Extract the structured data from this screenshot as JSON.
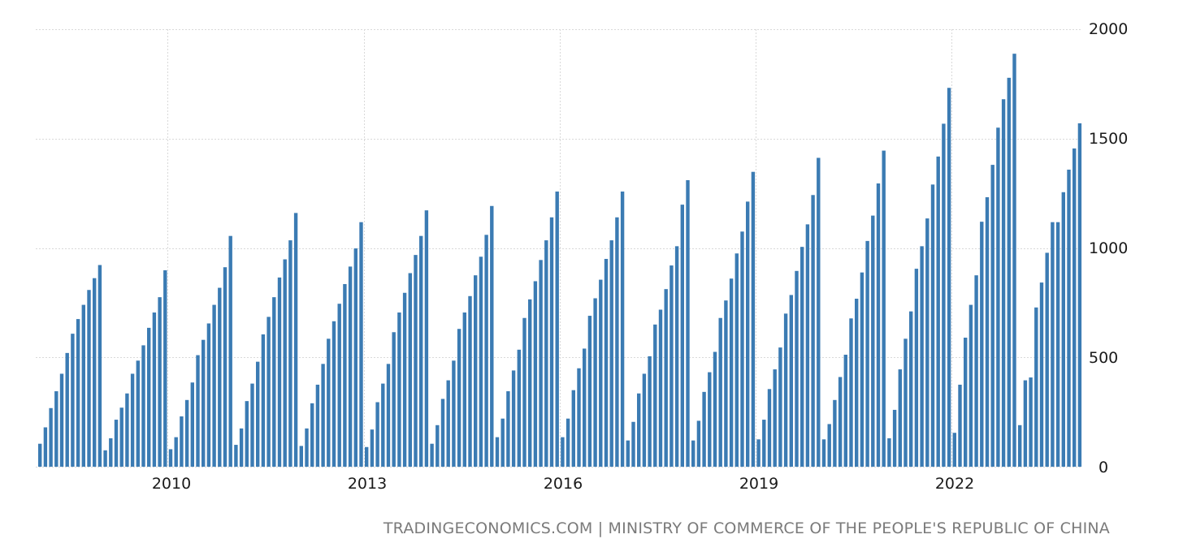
{
  "chart_data": {
    "type": "bar",
    "title": "",
    "xlabel": "",
    "ylabel": "",
    "ylim": [
      0,
      2000
    ],
    "y_ticks": [
      "0",
      "500",
      "1000",
      "1500",
      "2000"
    ],
    "x_ticks": [
      "2010",
      "2013",
      "2016",
      "2019",
      "2022"
    ],
    "y_axis_position": "right",
    "grid": true,
    "legend": "none",
    "bar_color": "#3b7bb3",
    "series": [
      {
        "values": [
          105,
          180,
          268,
          345,
          425,
          520,
          608,
          675,
          740,
          808,
          862,
          922,
          75,
          130,
          215,
          270,
          335,
          425,
          485,
          555,
          635,
          705,
          775,
          898,
          80,
          135,
          230,
          305,
          385,
          510,
          580,
          655,
          740,
          818,
          912,
          1055,
          100,
          175,
          300,
          380,
          480,
          605,
          685,
          775,
          865,
          948,
          1035,
          1160,
          95,
          175,
          290,
          375,
          470,
          585,
          665,
          745,
          835,
          915,
          998,
          1118,
          90,
          170,
          295,
          380,
          470,
          615,
          705,
          795,
          885,
          968,
          1055,
          1172,
          105,
          190,
          310,
          395,
          485,
          630,
          705,
          780,
          875,
          960,
          1060,
          1192,
          135,
          220,
          345,
          440,
          535,
          680,
          765,
          848,
          945,
          1035,
          1140,
          1258,
          135,
          220,
          350,
          450,
          540,
          690,
          770,
          855,
          950,
          1035,
          1140,
          1258,
          120,
          205,
          335,
          425,
          505,
          650,
          718,
          812,
          920,
          1008,
          1198,
          1310,
          120,
          210,
          342,
          432,
          525,
          680,
          760,
          860,
          975,
          1075,
          1212,
          1348,
          125,
          215,
          355,
          445,
          545,
          700,
          785,
          895,
          1005,
          1108,
          1242,
          1412,
          125,
          195,
          305,
          410,
          512,
          678,
          768,
          888,
          1032,
          1148,
          1295,
          1445,
          130,
          260,
          445,
          585,
          710,
          905,
          1008,
          1135,
          1290,
          1418,
          1568,
          1732,
          155,
          375,
          590,
          740,
          875,
          1120,
          1232,
          1380,
          1550,
          1680,
          1778,
          1888,
          190,
          395,
          408,
          728,
          842,
          978,
          1118,
          1118,
          1255,
          1358,
          1455,
          1570
        ]
      }
    ],
    "start": "2008-01",
    "frequency": "monthly"
  },
  "source": {
    "text": "TRADINGECONOMICS.COM | MINISTRY OF COMMERCE OF THE PEOPLE'S REPUBLIC OF CHINA"
  }
}
